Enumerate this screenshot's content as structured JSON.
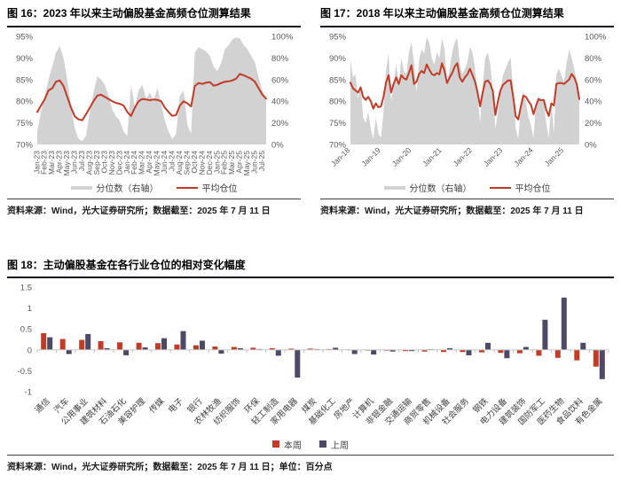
{
  "colors": {
    "red": "#c23b27",
    "navy": "#4d4a66",
    "gray_area": "#d2d2d2",
    "axis_text": "#595959",
    "title_rule": "#16161f"
  },
  "figures": [
    {
      "title": "图 16：2023 年以来主动偏股基金高频仓位测算结果",
      "source": "资料来源：Wind，光大证券研究所；数据截至：2025 年 7 月 11 日",
      "legend": [
        {
          "label": "分位数（右轴）",
          "color": "#d2d2d2"
        },
        {
          "label": "平均仓位",
          "color": "#c23b27"
        }
      ]
    },
    {
      "title": "图 17：2018 年以来主动偏股基金高频仓位测算结果",
      "source": "资料来源：Wind，光大证券研究所；数据截至：2025 年 7 月 11 日",
      "legend": [
        {
          "label": "分位数（右轴）",
          "color": "#d2d2d2"
        },
        {
          "label": "平均仓位",
          "color": "#c23b27"
        }
      ]
    },
    {
      "title": "图 18：主动偏股基金在各行业仓位的相对变化幅度",
      "source": "资料来源：Wind，光大证券研究所；数据截至：2025 年 7 月 11 日；单位：百分点",
      "legend": [
        {
          "label": "本周",
          "color": "#c23b27"
        },
        {
          "label": "上周",
          "color": "#4d4a66"
        }
      ]
    }
  ],
  "chart_data": [
    {
      "type": "line",
      "title": "2023 年以来主动偏股基金高频仓位测算结果",
      "left_ticks": [
        "95%",
        "90%",
        "85%",
        "80%",
        "75%",
        "70%"
      ],
      "right_ticks": [
        "100%",
        "80%",
        "60%",
        "40%",
        "20%",
        "0%"
      ],
      "left_ylim": [
        70,
        95
      ],
      "right_ylim": [
        0,
        100
      ],
      "x_tick_labels": [
        "Jan-23",
        "Feb-23",
        "Mar-23",
        "Apr-23",
        "May-23",
        "Jun-23",
        "Jul-23",
        "Aug-23",
        "Sep-23",
        "Oct-23",
        "Nov-23",
        "Dec-23",
        "Jan-24",
        "Feb-24",
        "Mar-24",
        "Apr-24",
        "May-24",
        "Jun-24",
        "Jul-24",
        "Aug-24",
        "Sep-24",
        "Oct-24",
        "Nov-24",
        "Dec-24",
        "Jan-25",
        "Feb-25",
        "Mar-25",
        "Apr-25",
        "May-25",
        "Jun-25",
        "Jul-25"
      ],
      "x_tick_indices": [
        0,
        2,
        4,
        6,
        8,
        10,
        12,
        14,
        16,
        18,
        20,
        22,
        24,
        26,
        28,
        30,
        32,
        34,
        36,
        38,
        40,
        42,
        44,
        46,
        48,
        50,
        52,
        54,
        56,
        58,
        60
      ],
      "x_tick_rotation": -90,
      "series": [
        {
          "name": "分位数（右轴）",
          "type": "area",
          "axis": "right",
          "color": "#d2d2d2",
          "values": [
            12,
            30,
            45,
            60,
            72,
            85,
            91,
            80,
            60,
            35,
            15,
            5,
            3,
            8,
            30,
            48,
            63,
            60,
            55,
            45,
            32,
            26,
            22,
            12,
            8,
            55,
            35,
            50,
            55,
            42,
            48,
            40,
            52,
            38,
            22,
            12,
            5,
            10,
            45,
            50,
            18,
            10,
            85,
            90,
            88,
            86,
            82,
            72,
            68,
            75,
            88,
            92,
            97,
            99,
            98,
            92,
            88,
            82,
            76,
            62,
            50,
            42
          ]
        },
        {
          "name": "平均仓位",
          "type": "line",
          "axis": "left",
          "color": "#c23b27",
          "values": [
            77.5,
            79,
            80.5,
            82.5,
            83,
            84.5,
            84.8,
            83.5,
            81,
            78.5,
            76.5,
            75.8,
            75.6,
            77,
            78.5,
            80,
            81.3,
            81.5,
            81,
            80.5,
            80,
            79.6,
            79.4,
            79,
            77.5,
            76.6,
            78.5,
            80,
            80.5,
            80.4,
            80.2,
            80.4,
            80.3,
            80,
            78.5,
            77.5,
            76.6,
            76.8,
            79,
            80,
            79.5,
            78.8,
            83.5,
            84.2,
            84,
            84.3,
            84.4,
            83.6,
            83.8,
            84.2,
            84.5,
            84.6,
            84.8,
            85.2,
            86.3,
            86,
            85.6,
            85.2,
            84.5,
            83,
            81.5,
            80.6
          ]
        }
      ]
    },
    {
      "type": "line",
      "title": "2018 年以来主动偏股基金高频仓位测算结果",
      "left_ticks": [
        "95%",
        "90%",
        "85%",
        "80%",
        "75%",
        "70%"
      ],
      "right_ticks": [
        "100%",
        "80%",
        "60%",
        "40%",
        "20%",
        "0%"
      ],
      "left_ylim": [
        70,
        95
      ],
      "right_ylim": [
        0,
        100
      ],
      "x_tick_labels": [
        "Jan-18",
        "Jan-19",
        "Jan-20",
        "Jan-21",
        "Jan-22",
        "Jan-23",
        "Jan-24",
        "Jan-25"
      ],
      "x_tick_indices": [
        0,
        12,
        24,
        36,
        48,
        60,
        72,
        84
      ],
      "x_tick_rotation": -45,
      "series": [
        {
          "name": "分位数（右轴）",
          "type": "area",
          "axis": "right",
          "color": "#d2d2d2",
          "values": [
            78,
            62,
            65,
            42,
            55,
            25,
            20,
            30,
            15,
            5,
            25,
            10,
            6,
            30,
            68,
            84,
            40,
            55,
            75,
            55,
            80,
            68,
            65,
            85,
            95,
            75,
            48,
            78,
            88,
            84,
            99,
            94,
            80,
            74,
            85,
            80,
            98,
            88,
            55,
            70,
            85,
            94,
            99,
            75,
            65,
            70,
            76,
            90,
            85,
            70,
            45,
            20,
            55,
            80,
            85,
            74,
            50,
            14,
            30,
            50,
            64,
            70,
            76,
            80,
            50,
            15,
            5,
            35,
            50,
            40,
            25,
            18,
            6,
            40,
            45,
            40,
            40,
            20,
            6,
            40,
            10,
            65,
            70,
            64,
            58,
            75,
            88,
            80,
            70,
            58,
            44
          ]
        },
        {
          "name": "平均仓位",
          "type": "line",
          "axis": "left",
          "color": "#c23b27",
          "values": [
            84.3,
            83,
            82.5,
            82,
            83.2,
            81,
            80.3,
            81,
            80,
            78.3,
            79.5,
            78.6,
            78.8,
            81,
            84.3,
            86,
            82,
            84,
            85.5,
            84,
            86,
            85.3,
            85,
            86.5,
            88.3,
            84,
            84.5,
            86.3,
            87,
            86.5,
            88.5,
            87.3,
            86.3,
            86,
            86.5,
            86.2,
            88.8,
            87,
            84.2,
            85.5,
            86.5,
            88,
            88.8,
            85.5,
            84.5,
            85.5,
            86.2,
            87.5,
            86,
            84.5,
            82,
            78.8,
            82,
            84.5,
            84.8,
            84,
            82.3,
            76.8,
            80,
            82.5,
            83.8,
            84.3,
            84.8,
            84.8,
            81,
            76.5,
            75.8,
            78.8,
            81.3,
            81,
            80,
            79.2,
            77,
            79,
            80.5,
            80.2,
            80.3,
            78,
            76.6,
            79.5,
            79,
            84,
            84.2,
            84.2,
            84,
            84.5,
            85,
            86.3,
            85.5,
            84,
            80.5
          ]
        }
      ]
    },
    {
      "type": "bar",
      "title": "主动偏股基金在各行业仓位的相对变化幅度",
      "unit": "百分点",
      "ylim": [
        -1,
        1.5
      ],
      "yticks": [
        1.5,
        1,
        0.5,
        0,
        -0.5,
        -1
      ],
      "categories": [
        "通信",
        "汽车",
        "公用事业",
        "建筑材料",
        "石油石化",
        "美容护理",
        "传媒",
        "电子",
        "银行",
        "农林牧渔",
        "纺织服饰",
        "环保",
        "轻工制造",
        "家用电器",
        "煤炭",
        "基础化工",
        "房地产",
        "计算机",
        "非银金融",
        "交通运输",
        "商贸零售",
        "机械设备",
        "社会服务",
        "钢铁",
        "电力设备",
        "建筑装饰",
        "国防军工",
        "医药生物",
        "食品饮料",
        "有色金属"
      ],
      "series": [
        {
          "name": "本周",
          "color": "#c23b27",
          "values": [
            0.4,
            0.26,
            0.24,
            0.21,
            0.18,
            0.17,
            0.16,
            0.13,
            0.11,
            0.08,
            0.07,
            0.05,
            0.04,
            0.03,
            0.03,
            0.02,
            0.01,
            -0.01,
            -0.02,
            -0.03,
            -0.04,
            -0.05,
            -0.05,
            -0.06,
            -0.07,
            -0.08,
            -0.14,
            -0.19,
            -0.25,
            -0.4
          ]
        },
        {
          "name": "上周",
          "color": "#4d4a66",
          "values": [
            0.3,
            -0.1,
            0.38,
            0.04,
            -0.13,
            0.06,
            0.28,
            0.45,
            0.22,
            -0.09,
            0.04,
            0.02,
            -0.14,
            -0.66,
            0.02,
            0.05,
            -0.1,
            -0.11,
            -0.04,
            -0.03,
            0.02,
            0.04,
            -0.13,
            0.17,
            -0.2,
            0.07,
            0.72,
            1.25,
            0.17,
            -0.7
          ]
        }
      ]
    }
  ]
}
